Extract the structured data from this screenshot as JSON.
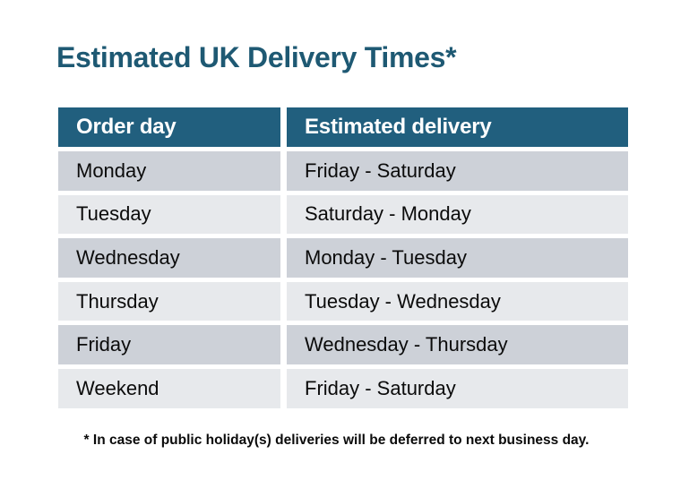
{
  "title": "Estimated UK Delivery Times*",
  "table": {
    "headers": [
      "Order day",
      "Estimated delivery"
    ],
    "rows": [
      {
        "order_day": "Monday",
        "estimated_delivery": "Friday - Saturday"
      },
      {
        "order_day": "Tuesday",
        "estimated_delivery": "Saturday - Monday"
      },
      {
        "order_day": "Wednesday",
        "estimated_delivery": "Monday - Tuesday"
      },
      {
        "order_day": "Thursday",
        "estimated_delivery": "Tuesday - Wednesday"
      },
      {
        "order_day": "Friday",
        "estimated_delivery": "Wednesday - Thursday"
      },
      {
        "order_day": "Weekend",
        "estimated_delivery": "Friday - Saturday"
      }
    ]
  },
  "footnote": "* In case of public holiday(s) deliveries will be deferred to next business day.",
  "colors": {
    "title_text": "#1E5973",
    "header_bg": "#215F7E",
    "header_text": "#FFFFFF",
    "row_dark_bg": "#CDD1D8",
    "row_light_bg": "#E7E9EC",
    "body_text": "#0B0B0B",
    "background": "#FFFFFF"
  }
}
